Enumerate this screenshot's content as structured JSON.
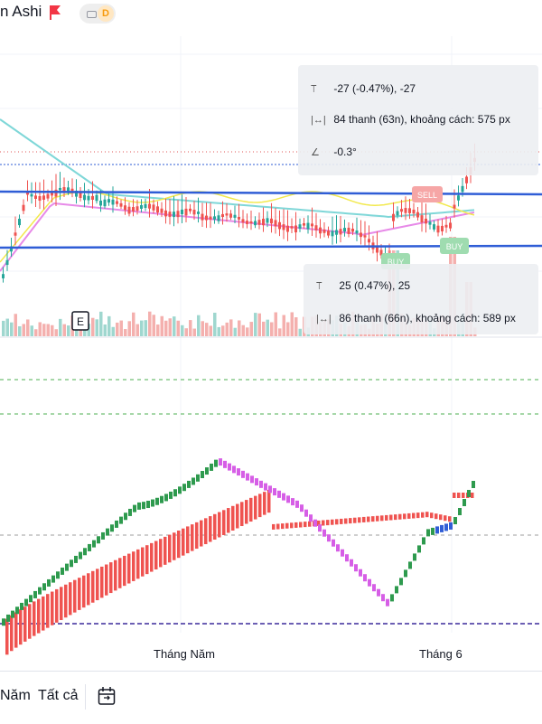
{
  "header": {
    "symbol_fragment": "n Ashi",
    "badge_letter": "D"
  },
  "colors": {
    "up": "#26a69a",
    "down": "#ef5350",
    "level_line": "#2f5dd6",
    "ma_cyan": "#7fd7d8",
    "ma_pink": "#e78ae8",
    "ma_yellow": "#f2e94e",
    "osc_purple": "#d65ee6",
    "osc_green": "#2e9a4e"
  },
  "measure_top": {
    "price_change": "-27 (-0.47%), -27",
    "bars": "84 thanh (63n), khoảng cách: 575 px",
    "angle": "-0.3°"
  },
  "measure_bottom": {
    "price_change": "25 (0.47%), 25",
    "bars": "86 thanh (66n), khoảng cách: 589 px"
  },
  "signals": {
    "sell": "SELL",
    "buy_1": "BUY",
    "buy_2": "BUY"
  },
  "event_marker": "E",
  "x_axis": {
    "label_1": "Tháng Năm",
    "label_2": "Tháng 6"
  },
  "timeframes": {
    "year": "Năm",
    "all": "Tất cả"
  },
  "icons": {
    "date_range": "calendar-icon",
    "flag": "flag-icon",
    "toggle": "toggle-icon"
  }
}
